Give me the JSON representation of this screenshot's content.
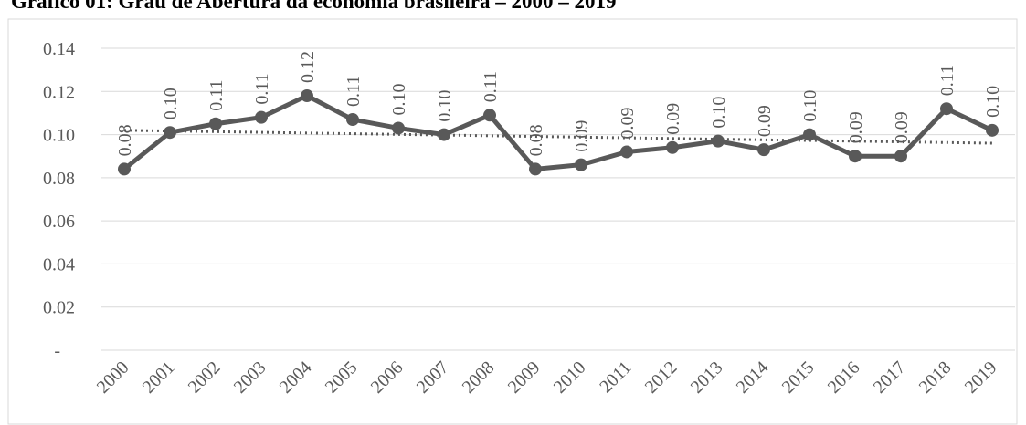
{
  "chart_data": {
    "type": "line",
    "title": "Gráfico 01: Grau de Abertura da economia brasileira – 2000 – 2019",
    "categories": [
      "2000",
      "2001",
      "2002",
      "2003",
      "2004",
      "2005",
      "2006",
      "2007",
      "2008",
      "2009",
      "2010",
      "2011",
      "2012",
      "2013",
      "2014",
      "2015",
      "2016",
      "2017",
      "2018",
      "2019"
    ],
    "values": [
      0.084,
      0.101,
      0.105,
      0.108,
      0.118,
      0.107,
      0.103,
      0.1,
      0.109,
      0.084,
      0.086,
      0.092,
      0.094,
      0.097,
      0.093,
      0.1,
      0.09,
      0.09,
      0.112,
      0.102
    ],
    "value_labels": [
      "0.08",
      "0.10",
      "0.11",
      "0.11",
      "0.12",
      "0.11",
      "0.10",
      "0.10",
      "0.11",
      "0.08",
      "0.09",
      "0.09",
      "0.09",
      "0.10",
      "0.09",
      "0.10",
      "0.09",
      "0.09",
      "0.11",
      "0.10"
    ],
    "trend": [
      0.102,
      0.096
    ],
    "color": "#595959",
    "ylim": [
      0,
      0.14
    ],
    "yticks": [
      {
        "value": 0,
        "label": "-"
      },
      0.02,
      0.04,
      0.06,
      0.08,
      {
        "value": 0.1,
        "label": "0.10"
      },
      0.12,
      0.14
    ],
    "grid": true
  }
}
